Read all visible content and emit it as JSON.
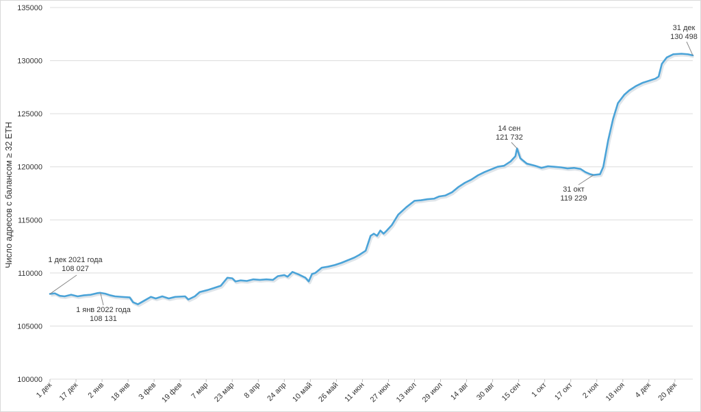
{
  "chart_data": {
    "type": "line",
    "title": "",
    "xlabel": "",
    "ylabel": "Число адресов с балансом ≥ 32 ETH",
    "ylim": [
      100000,
      135000
    ],
    "yticks": [
      "100000",
      "105000",
      "110000",
      "115000",
      "120000",
      "125000",
      "130000",
      "135000"
    ],
    "grid": true,
    "line_color": "#4aa3d8",
    "x_start": "2021-12-01",
    "x_end": "2022-12-31",
    "x_tick_labels": [
      "1 дек",
      "17 дек",
      "2 янв",
      "18 янв",
      "3 фев",
      "19 фев",
      "7 мар",
      "23 мар",
      "8 апр",
      "24 апр",
      "10 май",
      "26 май",
      "11 июн",
      "27 июн",
      "13 июл",
      "29 июл",
      "14 авг",
      "30 авг",
      "15 сен",
      "1 окт",
      "17 окт",
      "2 ноя",
      "18 ноя",
      "4 дек",
      "20 дек"
    ],
    "x_tick_dates": [
      "2021-12-01",
      "2021-12-17",
      "2022-01-02",
      "2022-01-18",
      "2022-02-03",
      "2022-02-19",
      "2022-03-07",
      "2022-03-23",
      "2022-04-08",
      "2022-04-24",
      "2022-05-10",
      "2022-05-26",
      "2022-06-11",
      "2022-06-27",
      "2022-07-13",
      "2022-07-29",
      "2022-08-14",
      "2022-08-30",
      "2022-09-15",
      "2022-10-01",
      "2022-10-17",
      "2022-11-02",
      "2022-11-18",
      "2022-12-04",
      "2022-12-20"
    ],
    "series": [
      {
        "name": "",
        "points": [
          [
            "2021-12-01",
            108027
          ],
          [
            "2021-12-04",
            108080
          ],
          [
            "2021-12-07",
            107850
          ],
          [
            "2021-12-10",
            107800
          ],
          [
            "2021-12-14",
            107950
          ],
          [
            "2021-12-18",
            107800
          ],
          [
            "2021-12-22",
            107900
          ],
          [
            "2021-12-26",
            107950
          ],
          [
            "2021-12-30",
            108100
          ],
          [
            "2022-01-01",
            108131
          ],
          [
            "2022-01-04",
            108050
          ],
          [
            "2022-01-07",
            107900
          ],
          [
            "2022-01-10",
            107800
          ],
          [
            "2022-01-14",
            107750
          ],
          [
            "2022-01-19",
            107700
          ],
          [
            "2022-01-21",
            107250
          ],
          [
            "2022-01-24",
            107050
          ],
          [
            "2022-01-28",
            107400
          ],
          [
            "2022-02-01",
            107750
          ],
          [
            "2022-02-04",
            107600
          ],
          [
            "2022-02-08",
            107800
          ],
          [
            "2022-02-12",
            107600
          ],
          [
            "2022-02-16",
            107750
          ],
          [
            "2022-02-22",
            107800
          ],
          [
            "2022-02-24",
            107500
          ],
          [
            "2022-02-28",
            107800
          ],
          [
            "2022-03-03",
            108200
          ],
          [
            "2022-03-08",
            108400
          ],
          [
            "2022-03-12",
            108600
          ],
          [
            "2022-03-16",
            108800
          ],
          [
            "2022-03-20",
            109550
          ],
          [
            "2022-03-23",
            109500
          ],
          [
            "2022-03-25",
            109200
          ],
          [
            "2022-03-28",
            109300
          ],
          [
            "2022-04-01",
            109250
          ],
          [
            "2022-04-05",
            109400
          ],
          [
            "2022-04-09",
            109350
          ],
          [
            "2022-04-13",
            109400
          ],
          [
            "2022-04-17",
            109350
          ],
          [
            "2022-04-20",
            109700
          ],
          [
            "2022-04-24",
            109800
          ],
          [
            "2022-04-26",
            109650
          ],
          [
            "2022-04-29",
            110100
          ],
          [
            "2022-05-03",
            109850
          ],
          [
            "2022-05-07",
            109550
          ],
          [
            "2022-05-09",
            109200
          ],
          [
            "2022-05-11",
            109900
          ],
          [
            "2022-05-13",
            110000
          ],
          [
            "2022-05-17",
            110500
          ],
          [
            "2022-05-21",
            110600
          ],
          [
            "2022-05-25",
            110750
          ],
          [
            "2022-05-29",
            110950
          ],
          [
            "2022-06-02",
            111200
          ],
          [
            "2022-06-06",
            111450
          ],
          [
            "2022-06-09",
            111700
          ],
          [
            "2022-06-13",
            112100
          ],
          [
            "2022-06-16",
            113500
          ],
          [
            "2022-06-18",
            113700
          ],
          [
            "2022-06-20",
            113500
          ],
          [
            "2022-06-22",
            114000
          ],
          [
            "2022-06-24",
            113700
          ],
          [
            "2022-06-26",
            114000
          ],
          [
            "2022-06-29",
            114500
          ],
          [
            "2022-07-03",
            115500
          ],
          [
            "2022-07-08",
            116200
          ],
          [
            "2022-07-13",
            116800
          ],
          [
            "2022-07-17",
            116850
          ],
          [
            "2022-07-21",
            116950
          ],
          [
            "2022-07-25",
            117000
          ],
          [
            "2022-07-28",
            117200
          ],
          [
            "2022-08-01",
            117300
          ],
          [
            "2022-08-05",
            117600
          ],
          [
            "2022-08-09",
            118100
          ],
          [
            "2022-08-13",
            118500
          ],
          [
            "2022-08-17",
            118800
          ],
          [
            "2022-08-21",
            119200
          ],
          [
            "2022-08-25",
            119500
          ],
          [
            "2022-08-29",
            119750
          ],
          [
            "2022-09-02",
            120000
          ],
          [
            "2022-09-06",
            120100
          ],
          [
            "2022-09-10",
            120500
          ],
          [
            "2022-09-13",
            121000
          ],
          [
            "2022-09-14",
            121732
          ],
          [
            "2022-09-16",
            120800
          ],
          [
            "2022-09-20",
            120300
          ],
          [
            "2022-09-25",
            120100
          ],
          [
            "2022-09-29",
            119900
          ],
          [
            "2022-10-03",
            120050
          ],
          [
            "2022-10-07",
            120000
          ],
          [
            "2022-10-11",
            119950
          ],
          [
            "2022-10-15",
            119850
          ],
          [
            "2022-10-19",
            119900
          ],
          [
            "2022-10-23",
            119800
          ],
          [
            "2022-10-26",
            119500
          ],
          [
            "2022-10-29",
            119300
          ],
          [
            "2022-10-31",
            119229
          ],
          [
            "2022-11-04",
            119300
          ],
          [
            "2022-11-06",
            120000
          ],
          [
            "2022-11-09",
            122500
          ],
          [
            "2022-11-12",
            124500
          ],
          [
            "2022-11-15",
            126000
          ],
          [
            "2022-11-19",
            126800
          ],
          [
            "2022-11-22",
            127200
          ],
          [
            "2022-11-26",
            127600
          ],
          [
            "2022-11-30",
            127900
          ],
          [
            "2022-12-04",
            128100
          ],
          [
            "2022-12-08",
            128300
          ],
          [
            "2022-12-10",
            128500
          ],
          [
            "2022-12-12",
            129700
          ],
          [
            "2022-12-15",
            130300
          ],
          [
            "2022-12-19",
            130600
          ],
          [
            "2022-12-24",
            130650
          ],
          [
            "2022-12-28",
            130600
          ],
          [
            "2022-12-31",
            130498
          ]
        ]
      }
    ],
    "annotations": [
      {
        "date": "2021-12-01",
        "value": 108027,
        "line1": "1 дек 2021 года",
        "line2": "108 027"
      },
      {
        "date": "2022-01-01",
        "value": 108131,
        "line1": "1 янв 2022 года",
        "line2": "108 131"
      },
      {
        "date": "2022-09-14",
        "value": 121732,
        "line1": "14 сен",
        "line2": "121 732"
      },
      {
        "date": "2022-10-31",
        "value": 119229,
        "line1": "31 окт",
        "line2": "119 229"
      },
      {
        "date": "2022-12-31",
        "value": 130498,
        "line1": "31 дек",
        "line2": "130 498"
      }
    ]
  }
}
